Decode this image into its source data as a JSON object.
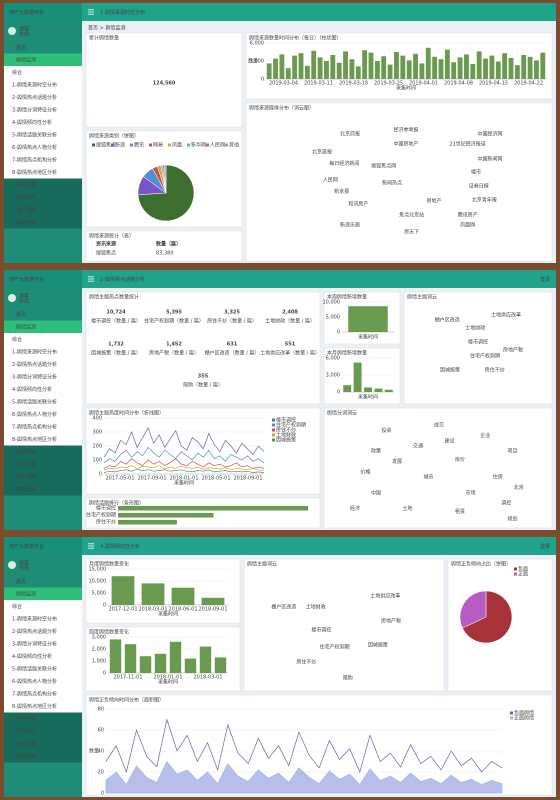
{
  "brand": "地产大数据平台",
  "sidebar": {
    "user": "游客",
    "status": "在线",
    "items": [
      "首页",
      "舆情监测",
      "综合",
      "1-舆情来源时空分布",
      "2-舆情热点话题分析",
      "3-舆情分词特征分析",
      "4-舆情倾向性分析",
      "5-舆情话题关联分析",
      "6-舆情热点人物分析",
      "7-舆情热点机构分析",
      "8-舆情热点地区分析",
      "房价预警",
      "交互分析",
      "地产测图",
      "数据分析"
    ]
  },
  "panels": [
    {
      "title": "1-舆情来源时空分布",
      "breadcrumb": "首页 > 舆情监测",
      "total": {
        "title": "累计舆情数量",
        "value": "124,560"
      },
      "daily": {
        "title": "舆情来源数量时间分布（每日）（柱状图）",
        "x_label": "采集时间",
        "y_label": "数量",
        "color": "#6a9a4f",
        "ylim": [
          0,
          6000
        ],
        "yticks": [
          0,
          {
            "value": 3000,
            "label": "3,000"
          },
          {
            "value": 6000,
            "label": "6,000"
          }
        ],
        "xticks": [
          "2019-03-04",
          "2019-03-11",
          "2019-03-18",
          "2019-03-25",
          "2019-04-01",
          "2019-04-08",
          "2019-04-15",
          "2019-04-22"
        ],
        "values": [
          2600,
          3400,
          4100,
          1800,
          3900,
          4300,
          2200,
          4700,
          3600,
          3000,
          4000,
          2700,
          4600,
          3300,
          2100,
          4800,
          4400,
          3000,
          3800,
          2400,
          4500,
          3900,
          3100,
          4200,
          2600,
          5200,
          3700,
          3300,
          4900,
          2800,
          3600,
          4100,
          2500,
          4600,
          3400,
          3900,
          2900,
          4300,
          3500,
          2300,
          4000,
          3700,
          3100,
          4400
        ]
      },
      "source_pie": {
        "title": "舆情来源类别（饼图）",
        "names": [
          "搜狐焦点",
          "新浪",
          "腾讯",
          "网易",
          "凤凰",
          "新华网",
          "人民网",
          "其他"
        ],
        "colors": [
          "#3e6e2f",
          "#7b55c7",
          "#4e8fd6",
          "#d05050",
          "#e0a030",
          "#5cb8b2",
          "#c45fa0",
          "#9aa0a6"
        ],
        "values": [
          74,
          11,
          7,
          3,
          2,
          1,
          1,
          1
        ]
      },
      "media_cloud": {
        "title": "舆情来源媒体分布（词云图）",
        "words": [
          "新闻热点",
          "搜狐焦点网",
          "房地产",
          "楼市",
          "焦点北京站",
          "和讯房产",
          "北京晨报",
          "新京报",
          "人民网",
          "中国房地产",
          "北京商报",
          "经济参考报",
          "每日经济新闻",
          "21世纪经济报道",
          "证券日报",
          "中国新闻网",
          "腾讯房产",
          "新浪乐居",
          "房天下",
          "北京青年报",
          "凤凰网",
          "中国经济网"
        ],
        "colors": [
          "#2a8c7c",
          "#3aa06a",
          "#6b5fc0",
          "#c0504d",
          "#d2892c",
          "#4a7fbf",
          "#8a6d3b",
          "#b04a8a"
        ]
      },
      "table": {
        "title": "舆情来源统计（表）",
        "headers": [
          "资讯来源",
          "数量（篇）"
        ],
        "rows": [
          [
            "搜狐焦点",
            "83,380"
          ]
        ]
      }
    },
    {
      "title": "2-舆情热点话题分析",
      "login": "登录",
      "stats": {
        "title": "舆情主题热点数量统计",
        "items": [
          {
            "value": "10,724",
            "label": "楼市调控（数量 / 篇）"
          },
          {
            "value": "5,395",
            "label": "住宅产权到期（数量 / 篇）"
          },
          {
            "value": "3,325",
            "label": "房住不炒（数量 / 篇）"
          },
          {
            "value": "2,408",
            "label": "土地财政（数量 / 篇）"
          },
          {
            "value": "1,732",
            "label": "因城施策（数量 / 篇）"
          },
          {
            "value": "1,452",
            "label": "房地产税（数量 / 篇）"
          },
          {
            "value": "631",
            "label": "棚户区改造（数量 / 篇）"
          },
          {
            "value": "551",
            "label": "土地供应改革（数量 / 篇）"
          },
          {
            "value": "355",
            "label": "限购（数量 / 篇）"
          }
        ]
      },
      "week_bar": {
        "title": "本周舆情新增数量",
        "x_label": "采集时间",
        "color": "#6a9a4f",
        "ylim": [
          0,
          10000
        ],
        "yticks": [
          0,
          {
            "value": 5000,
            "label": "5,000"
          },
          {
            "value": 10000,
            "label": "10,000"
          }
        ],
        "values": [
          8600
        ]
      },
      "month_bar": {
        "title": "本月舆情新增数量",
        "x_label": "采集时间",
        "color": "#6a9a4f",
        "ylim": [
          0,
          6000
        ],
        "yticks": [
          0,
          {
            "value": 3000,
            "label": "3,000"
          },
          {
            "value": 6000,
            "label": "6,000"
          }
        ],
        "values": [
          1200,
          5200,
          800,
          600,
          400
        ]
      },
      "topic_cloud": {
        "title": "舆情主题词云",
        "words": [
          "楼市调控",
          "住宅产权到期",
          "土地财政",
          "房住不炒",
          "因城施策",
          "棚户区改造",
          "土地供应改革",
          "房地产税"
        ],
        "colors": [
          "#3e9a6e",
          "#c0504d",
          "#3f7fbf",
          "#7a9a2a",
          "#2a8c7c",
          "#8a5cc0",
          "#d2892c",
          "#5a7a9a"
        ]
      },
      "trend": {
        "title": "舆情主题热度时间分布（折线图）",
        "x_label": "采集时间",
        "ylim": [
          0,
          400
        ],
        "yticks": [
          0,
          100,
          200,
          300,
          400
        ],
        "xticks": [
          "2017-05-01",
          "2017-09-01",
          "2018-01-01",
          "2018-05-01",
          "2018-09-01"
        ],
        "series": [
          {
            "name": "楼市调控",
            "color": "#6b5fc0",
            "values": [
              120,
              180,
              150,
              240,
              210,
              300,
              190,
              260,
              330,
              220,
              280,
              190,
              250,
              310,
              200,
              170,
              260,
              230,
              180,
              290,
              210,
              160,
              240,
              200,
              150,
              220,
              180,
              140,
              200,
              160
            ]
          },
          {
            "name": "住宅产权到期",
            "color": "#4e8fd6",
            "values": [
              80,
              110,
              90,
              140,
              170,
              120,
              160,
              130,
              190,
              150,
              120,
              170,
              140,
              110,
              160,
              130,
              100,
              150,
              120,
              170,
              110,
              130,
              90,
              140,
              120,
              100,
              130,
              90,
              110,
              80
            ]
          },
          {
            "name": "房住不炒",
            "color": "#d05050",
            "values": [
              40,
              60,
              50,
              90,
              70,
              110,
              80,
              60,
              100,
              70,
              90,
              60,
              80,
              110,
              70,
              60,
              90,
              70,
              50,
              80,
              60,
              70,
              50,
              60,
              80,
              50,
              60,
              40,
              50,
              40
            ]
          },
          {
            "name": "土地财政",
            "color": "#e0a030",
            "values": [
              30,
              40,
              35,
              50,
              45,
              60,
              40,
              55,
              50,
              45,
              60,
              35,
              50,
              40,
              55,
              45,
              40,
              50,
              35,
              45,
              40,
              35,
              45,
              30,
              40,
              35,
              30,
              40,
              30,
              25
            ]
          },
          {
            "name": "因城施策",
            "color": "#3e9a6e",
            "values": [
              10,
              20,
              15,
              25,
              30,
              20,
              35,
              25,
              30,
              20,
              25,
              30,
              20,
              25,
              30,
              20,
              15,
              25,
              20,
              30,
              15,
              20,
              25,
              15,
              20,
              15,
              20,
              10,
              15,
              10
            ]
          }
        ]
      },
      "word_cloud": {
        "title": "舆情分词词云",
        "words": [
          "城市",
          "房价",
          "中国",
          "市场",
          "建设",
          "发展",
          "土地",
          "住房",
          "政策",
          "企业",
          "调控",
          "价格",
          "成交",
          "项目",
          "经济",
          "北京",
          "投资",
          "租赁",
          "交通",
          "规划"
        ],
        "colors": [
          "#b05a3a",
          "#6b5fc0",
          "#3e9a6e",
          "#c0504d",
          "#2a8c7c",
          "#8a6d3b",
          "#4a7fbf",
          "#7a9a2a"
        ]
      },
      "ranking": {
        "title": "舆情话题排行（条形图）",
        "color": "#6a9a4f",
        "categories": [
          "楼市调控",
          "住宅产权到期",
          "房住不炒"
        ],
        "values": [
          10724,
          5395,
          3325
        ]
      }
    },
    {
      "title": "4-舆情倾向性分析",
      "login": "登录",
      "month_bar": {
        "title": "月度舆情数量变化",
        "x_label": "采集时间",
        "color": "#6a9a4f",
        "ylim": [
          0,
          15000
        ],
        "yticks": [
          0,
          {
            "value": 5000,
            "label": "5,000"
          },
          {
            "value": 10000,
            "label": "10,000"
          },
          {
            "value": 15000,
            "label": "15,000"
          }
        ],
        "xticks": [
          "2017-12-01",
          "2018-03-01",
          "2018-06-01",
          "2018-09-01"
        ],
        "values": [
          12000,
          9000,
          7200,
          3000
        ]
      },
      "week_bar": {
        "title": "周度舆情数量变化",
        "x_label": "采集时间",
        "color": "#6a9a4f",
        "ylim": [
          0,
          3000
        ],
        "yticks": [
          0,
          {
            "value": 1000,
            "label": "1,000"
          },
          {
            "value": 2000,
            "label": "2,000"
          },
          {
            "value": 3000,
            "label": "3,000"
          }
        ],
        "xticks": [
          "2017-11-01",
          "2018-01-01",
          "2018-03-01"
        ],
        "values": [
          2800,
          2400,
          1400,
          1600,
          2600,
          1200,
          2200,
          1300
        ]
      },
      "topic_cloud": {
        "title": "舆情主题词云",
        "words": [
          "楼市调控",
          "住宅产权到期",
          "土地财政",
          "房住不炒",
          "因城施策",
          "棚户区改造",
          "土地供应改革",
          "房地产税",
          "限购"
        ],
        "colors": [
          "#3e9a6e",
          "#6b5fc0",
          "#c0504d",
          "#7a9a2a",
          "#3f7fbf",
          "#2a8c7c",
          "#8a5cc0",
          "#d2892c",
          "#5a7a9a"
        ]
      },
      "sentiment_pie": {
        "title": "舆情正负倾向占比（饼图）",
        "names": [
          "负面",
          "正面"
        ],
        "colors": [
          "#a8323a",
          "#b85cc4"
        ],
        "values": [
          68,
          32
        ]
      },
      "trend": {
        "title": "舆情正负倾向时间分布（面积图）",
        "y_label": "数量",
        "ylim": [
          0,
          80
        ],
        "yticks": [
          0,
          20,
          40,
          60,
          80
        ],
        "series": [
          {
            "name": "负面舆情",
            "color": "#6b5fc0",
            "values": [
              30,
              45,
              20,
              60,
              35,
              25,
              70,
              40,
              55,
              30,
              48,
              22,
              65,
              38,
              28,
              52,
              33,
              45,
              26,
              58,
              36,
              24,
              50,
              32,
              42,
              20,
              55,
              30,
              38,
              25,
              46,
              28,
              35,
              22,
              40,
              26,
              33,
              20,
              30,
              24
            ]
          },
          {
            "name": "正面舆情",
            "color": "#a9b4e8",
            "values": [
              12,
              20,
              8,
              26,
              15,
              10,
              30,
              18,
              22,
              12,
              20,
              9,
              28,
              16,
              11,
              22,
              14,
              19,
              10,
              24,
              15,
              9,
              21,
              13,
              18,
              8,
              23,
              12,
              16,
              10,
              19,
              11,
              14,
              9,
              17,
              10,
              13,
              8,
              12,
              9
            ]
          }
        ]
      }
    }
  ]
}
